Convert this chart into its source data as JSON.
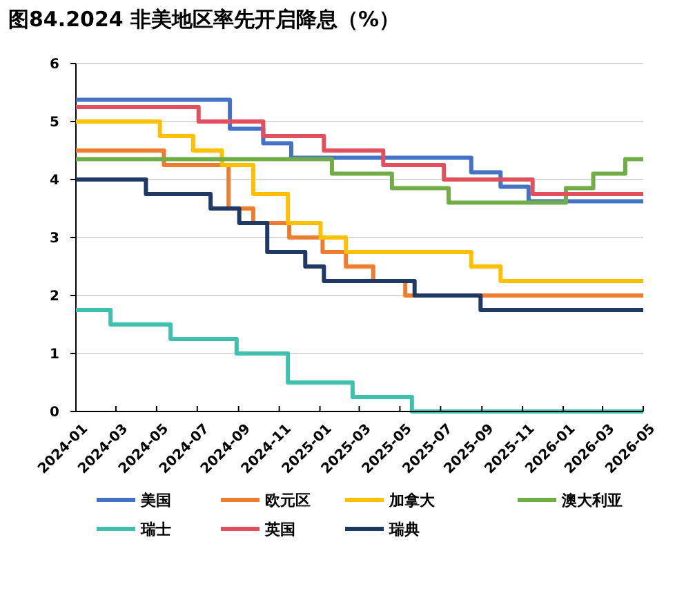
{
  "chart_data": {
    "type": "step",
    "title": "图84.2024 非美地区率先开启降息（%）",
    "xlim": [
      "2024-01",
      "2026-05"
    ],
    "xticks": [
      "2024-01",
      "2024-03",
      "2024-05",
      "2024-07",
      "2024-09",
      "2024-11",
      "2025-01",
      "2025-03",
      "2025-05",
      "2025-07",
      "2025-09",
      "2025-11",
      "2026-01",
      "2026-03",
      "2026-05"
    ],
    "ylim": [
      0,
      6
    ],
    "yticks": [
      0,
      1,
      2,
      3,
      4,
      5,
      6
    ],
    "grid": "y",
    "legend": "bottom",
    "line_style": "solid",
    "marker": "none",
    "series": [
      {
        "name": "美国",
        "color": "#4472c4",
        "x": [
          "2024-01-01",
          "2024-08-19",
          "2024-10-08",
          "2024-11-19",
          "2025-08-16",
          "2025-09-29",
          "2025-11-10",
          "2026-05-01"
        ],
        "values": [
          5.375,
          4.875,
          4.625,
          4.375,
          4.125,
          3.875,
          3.625,
          3.625
        ]
      },
      {
        "name": "欧元区",
        "color": "#ed7d31",
        "x": [
          "2024-01-01",
          "2024-05-12",
          "2024-08-17",
          "2024-09-23",
          "2024-11-16",
          "2025-01-05",
          "2025-02-09",
          "2025-03-22",
          "2025-05-09",
          "2026-05-01"
        ],
        "values": [
          4.5,
          4.25,
          3.5,
          3.25,
          3.0,
          2.75,
          2.5,
          2.25,
          2.0,
          2.0
        ]
      },
      {
        "name": "加拿大",
        "color": "#ffc000",
        "x": [
          "2024-01-01",
          "2024-05-06",
          "2024-06-25",
          "2024-08-07",
          "2024-09-23",
          "2024-11-14",
          "2025-01-02",
          "2025-02-09",
          "2025-08-16",
          "2025-09-29",
          "2026-05-01"
        ],
        "values": [
          5.0,
          4.75,
          4.5,
          4.25,
          3.75,
          3.25,
          3.0,
          2.75,
          2.5,
          2.25,
          2.25
        ]
      },
      {
        "name": "澳大利亚",
        "color": "#70ad47",
        "x": [
          "2024-01-01",
          "2025-01-19",
          "2025-04-19",
          "2025-07-13",
          "2026-01-05",
          "2026-02-15",
          "2026-04-04",
          "2026-05-01"
        ],
        "values": [
          4.35,
          4.1,
          3.85,
          3.6,
          3.85,
          4.1,
          4.35,
          4.35
        ]
      },
      {
        "name": "瑞士",
        "color": "#3fbfad",
        "x": [
          "2024-01-01",
          "2024-02-22",
          "2024-05-22",
          "2024-08-29",
          "2024-11-14",
          "2025-02-19",
          "2025-05-19",
          "2026-05-01"
        ],
        "values": [
          1.75,
          1.5,
          1.25,
          1.0,
          0.5,
          0.25,
          0,
          0
        ]
      },
      {
        "name": "英国",
        "color": "#e0505e",
        "x": [
          "2024-01-01",
          "2024-07-03",
          "2024-10-08",
          "2025-01-07",
          "2025-04-06",
          "2025-07-06",
          "2025-11-16",
          "2026-05-01"
        ],
        "values": [
          5.25,
          5.0,
          4.75,
          4.5,
          4.25,
          4.0,
          3.75,
          3.75
        ]
      },
      {
        "name": "瑞典",
        "color": "#203864",
        "x": [
          "2024-01-01",
          "2024-04-15",
          "2024-07-21",
          "2024-09-02",
          "2024-10-14",
          "2024-12-10",
          "2025-01-07",
          "2025-05-23",
          "2025-08-30",
          "2026-05-01"
        ],
        "values": [
          4.0,
          3.75,
          3.5,
          3.25,
          2.75,
          2.5,
          2.25,
          2.0,
          1.75,
          1.75
        ]
      }
    ]
  }
}
